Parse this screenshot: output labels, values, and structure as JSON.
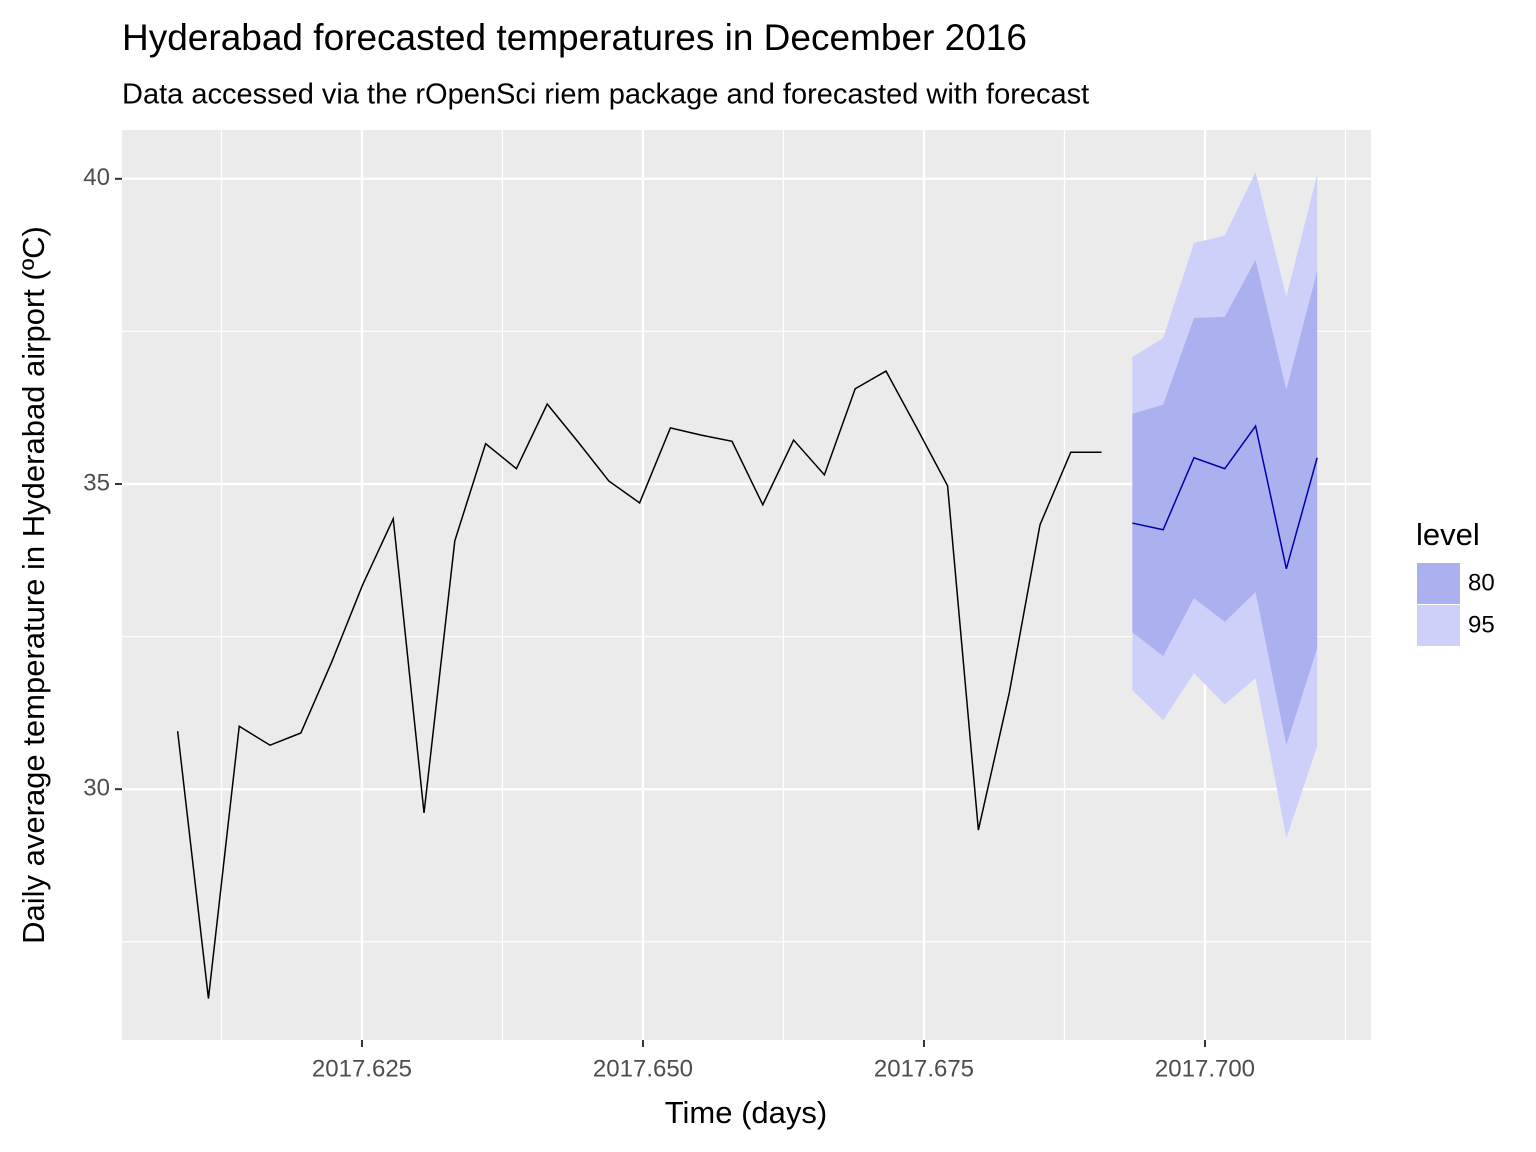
{
  "chart_data": {
    "type": "line",
    "title": "Hyderabad forecasted temperatures in December 2016",
    "subtitle": "Data accessed via the rOpenSci riem package and forecasted with forecast",
    "x_label": "Time (days)",
    "y_label": "Daily average temperature in Hyderabad airport (ºC)",
    "xlim": [
      2017.60365,
      2017.71477
    ],
    "ylim": [
      25.89,
      40.8
    ],
    "xticks": [
      2017.625,
      {
        "value": 2017.65,
        "label": "2017.650"
      },
      2017.675,
      {
        "value": 2017.7,
        "label": "2017.700"
      }
    ],
    "x_minor_ticks": [
      2017.6125,
      2017.6375,
      2017.6625,
      2017.6875,
      2017.7125
    ],
    "yticks": [
      30,
      35,
      40
    ],
    "y_minor_ticks": [
      27.5,
      32.5,
      37.5
    ],
    "grid": true,
    "x": [
      2017.6086,
      2017.61134,
      2017.61408,
      2017.61682,
      2017.61956,
      2017.6223,
      2017.62504,
      2017.62778,
      2017.63052,
      2017.63326,
      2017.636,
      2017.63874,
      2017.64148,
      2017.64422,
      2017.64696,
      2017.6497,
      2017.65244,
      2017.65518,
      2017.65792,
      2017.66066,
      2017.6634,
      2017.66614,
      2017.66888,
      2017.67162,
      2017.67436,
      2017.6771,
      2017.67984,
      2017.68258,
      2017.68532,
      2017.68806,
      2017.6908
    ],
    "values": [
      30.95,
      26.57,
      31.03,
      30.72,
      30.92,
      32.08,
      33.34,
      34.43,
      29.61,
      34.07,
      35.66,
      35.25,
      36.31,
      35.69,
      35.05,
      34.69,
      35.92,
      35.8,
      35.7,
      34.66,
      35.72,
      35.15,
      36.56,
      36.85,
      35.92,
      34.97,
      29.33,
      31.57,
      34.33,
      35.52,
      35.52
    ],
    "line_color": "#000000",
    "forecast_x": [
      2017.69354,
      2017.69628,
      2017.69902,
      2017.70176,
      2017.7045,
      2017.70724,
      2017.70998
    ],
    "forecast_mean": [
      34.36,
      34.25,
      35.43,
      35.25,
      35.95,
      33.61,
      35.43
    ],
    "forecast_color": "#0000aa",
    "legend_title": "level",
    "legend_position": "right",
    "bands": [
      {
        "name": "80",
        "color": "#abb0ee",
        "lower": [
          32.57,
          32.18,
          33.13,
          32.74,
          33.23,
          30.72,
          32.31
        ],
        "upper": [
          36.15,
          36.3,
          37.72,
          37.74,
          38.67,
          36.54,
          38.49
        ]
      },
      {
        "name": "95",
        "color": "#cdd1fa",
        "lower": [
          31.62,
          31.13,
          31.9,
          31.39,
          31.82,
          29.2,
          30.7
        ],
        "upper": [
          37.08,
          37.39,
          38.95,
          39.07,
          40.11,
          38.07,
          40.07
        ]
      }
    ]
  }
}
